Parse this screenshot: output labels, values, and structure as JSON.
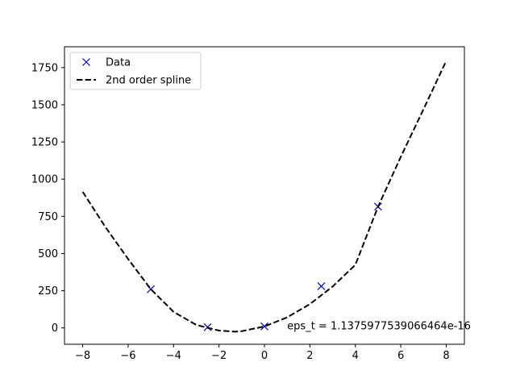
{
  "chart_data": {
    "type": "line",
    "title": "",
    "xlabel": "",
    "ylabel": "",
    "xlim": [
      -8.8,
      8.8
    ],
    "ylim": [
      -110,
      1890
    ],
    "xticks": [
      -8,
      -6,
      -4,
      -2,
      0,
      2,
      4,
      6,
      8
    ],
    "yticks": [
      0,
      250,
      500,
      750,
      1000,
      1250,
      1500,
      1750
    ],
    "xtick_labels": [
      "−8",
      "−6",
      "−4",
      "−2",
      "0",
      "2",
      "4",
      "6",
      "8"
    ],
    "ytick_labels": [
      "0",
      "250",
      "500",
      "750",
      "1000",
      "1250",
      "1500",
      "1750"
    ],
    "grid": false,
    "legend_position": "top-left",
    "series": [
      {
        "name": "Data",
        "kind": "markers",
        "marker": "x",
        "color": "#0000cd",
        "x": [
          -5,
          -2.5,
          0,
          2.5,
          5
        ],
        "y": [
          260,
          5,
          10,
          280,
          815
        ]
      },
      {
        "name": "2nd order spline",
        "kind": "line",
        "style": "dashed",
        "color": "#000000",
        "x": [
          -8,
          -7,
          -6,
          -5,
          -4,
          -3,
          -2,
          -1.3,
          -1,
          0,
          1,
          2,
          3,
          4,
          5,
          6,
          7,
          8
        ],
        "y": [
          915,
          678,
          463,
          260,
          108,
          20,
          -18,
          -25,
          -22,
          10,
          71,
          160,
          278,
          424,
          815,
          1150,
          1470,
          1795
        ]
      }
    ],
    "annotations": [
      {
        "text": "eps_t = 1.1375977539066464e-16",
        "x": 1.0,
        "y": 15
      }
    ]
  }
}
